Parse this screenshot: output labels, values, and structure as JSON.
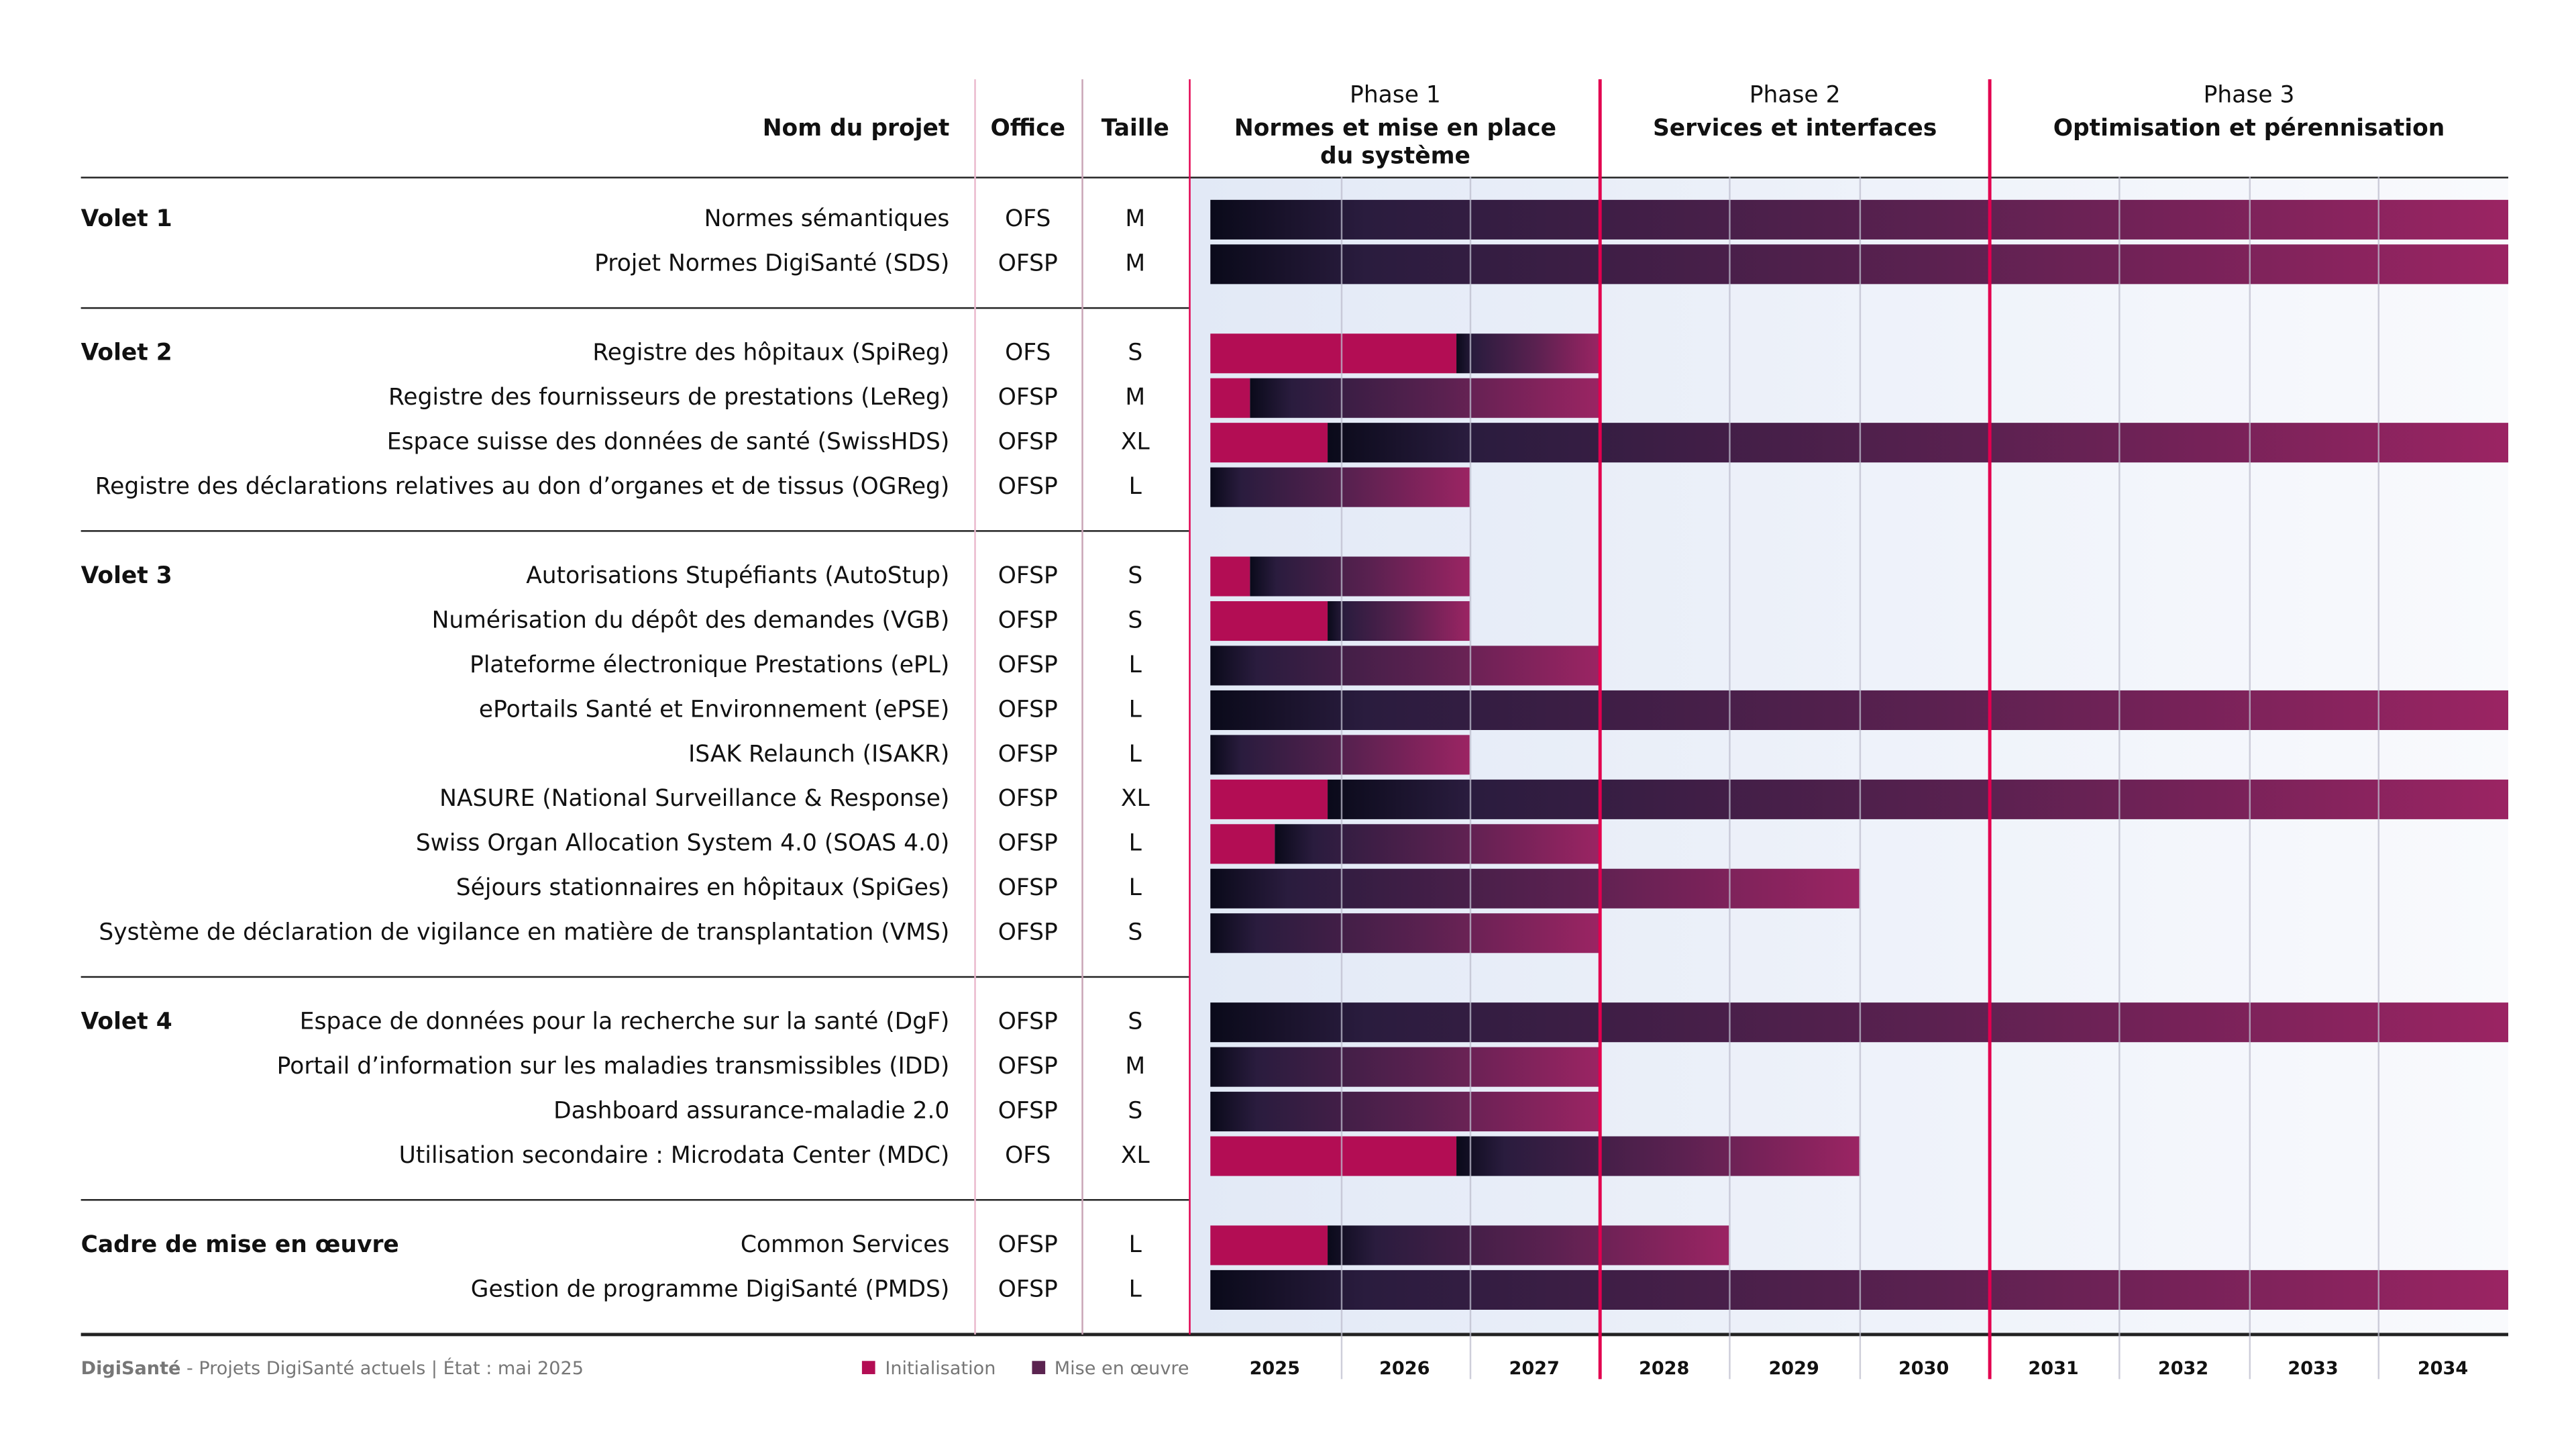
{
  "chart_data": {
    "type": "gantt",
    "header": {
      "project": "Nom du projet",
      "office": "Office",
      "size": "Taille"
    },
    "phases": [
      {
        "label": "Phase 1",
        "title": "Normes et mise en place du système",
        "start_year": 2025,
        "end_year": 2027
      },
      {
        "label": "Phase 2",
        "title": "Services et interfaces",
        "start_year": 2028,
        "end_year": 2030
      },
      {
        "label": "Phase 3",
        "title": "Optimisation et pérennisation",
        "start_year": 2031,
        "end_year": 2034
      }
    ],
    "years": [
      "2025",
      "2026",
      "2027",
      "2028",
      "2029",
      "2030",
      "2031",
      "2032",
      "2033",
      "2034"
    ],
    "colors": {
      "initialisation": "#b30d54",
      "mise_en_oeuvre": "#5b2350",
      "phase_line": "#e2004f"
    },
    "legend": {
      "initialisation": "Initialisation",
      "mise_en_oeuvre": "Mise en œuvre"
    },
    "groups": [
      {
        "label": "Volet 1",
        "projects": [
          {
            "name": "Normes sémantiques",
            "office": "OFS",
            "size": "M",
            "init_years": 0,
            "end_year": 2034
          },
          {
            "name": "Projet Normes DigiSanté (SDS)",
            "office": "OFSP",
            "size": "M",
            "init_years": 0,
            "end_year": 2034
          }
        ]
      },
      {
        "label": "Volet 2",
        "projects": [
          {
            "name": "Registre des hôpitaux (SpiReg)",
            "office": "OFS",
            "size": "S",
            "init_years": 1.9,
            "end_year": 2027
          },
          {
            "name": "Registre des fournisseurs de prestations (LeReg)",
            "office": "OFSP",
            "size": "M",
            "init_years": 0.3,
            "end_year": 2027
          },
          {
            "name": "Espace suisse des données de santé (SwissHDS)",
            "office": "OFSP",
            "size": "XL",
            "init_years": 0.9,
            "end_year": 2034
          },
          {
            "name": "Registre des déclarations relatives au don d’organes et de tissus (OGReg)",
            "office": "OFSP",
            "size": "L",
            "init_years": 0,
            "end_year": 2026
          }
        ]
      },
      {
        "label": "Volet 3",
        "projects": [
          {
            "name": "Autorisations Stupéfiants (AutoStup)",
            "office": "OFSP",
            "size": "S",
            "init_years": 0.3,
            "end_year": 2026
          },
          {
            "name": "Numérisation du dépôt des demandes (VGB)",
            "office": "OFSP",
            "size": "S",
            "init_years": 0.9,
            "end_year": 2026
          },
          {
            "name": "Plateforme électronique Prestations (ePL)",
            "office": "OFSP",
            "size": "L",
            "init_years": 0,
            "end_year": 2027
          },
          {
            "name": "ePortails Santé et Environnement (ePSE)",
            "office": "OFSP",
            "size": "L",
            "init_years": 0,
            "end_year": 2034
          },
          {
            "name": "ISAK Relaunch (ISAKR)",
            "office": "OFSP",
            "size": "L",
            "init_years": 0,
            "end_year": 2026
          },
          {
            "name": "NASURE (National Surveillance & Response)",
            "office": "OFSP",
            "size": "XL",
            "init_years": 0.9,
            "end_year": 2034
          },
          {
            "name": "Swiss Organ Allocation System 4.0 (SOAS 4.0)",
            "office": "OFSP",
            "size": "L",
            "init_years": 0.5,
            "end_year": 2027
          },
          {
            "name": "Séjours stationnaires en hôpitaux (SpiGes)",
            "office": "OFSP",
            "size": "L",
            "init_years": 0,
            "end_year": 2029
          },
          {
            "name": "Système de déclaration de vigilance en matière de transplantation (VMS)",
            "office": "OFSP",
            "size": "S",
            "init_years": 0,
            "end_year": 2027
          }
        ]
      },
      {
        "label": "Volet 4",
        "projects": [
          {
            "name": "Espace de données pour la recherche sur la santé (DgF)",
            "office": "OFSP",
            "size": "S",
            "init_years": 0,
            "end_year": 2034
          },
          {
            "name": "Portail d’information sur les maladies transmissibles (IDD)",
            "office": "OFSP",
            "size": "M",
            "init_years": 0,
            "end_year": 2027
          },
          {
            "name": "Dashboard assurance-maladie 2.0",
            "office": "OFSP",
            "size": "S",
            "init_years": 0,
            "end_year": 2027
          },
          {
            "name": "Utilisation secondaire : Microdata Center (MDC)",
            "office": "OFS",
            "size": "XL",
            "init_years": 1.9,
            "end_year": 2029
          }
        ]
      },
      {
        "label": "Cadre de mise en œuvre",
        "projects": [
          {
            "name": "Common Services",
            "office": "OFSP",
            "size": "L",
            "init_years": 0.9,
            "end_year": 2028
          },
          {
            "name": "Gestion de programme DigiSanté (PMDS)",
            "office": "OFSP",
            "size": "L",
            "init_years": 0,
            "end_year": 2034
          }
        ]
      }
    ]
  },
  "footer": {
    "brand": "DigiSanté",
    "text": " - Projets DigiSanté actuels | État : mai 2025"
  }
}
